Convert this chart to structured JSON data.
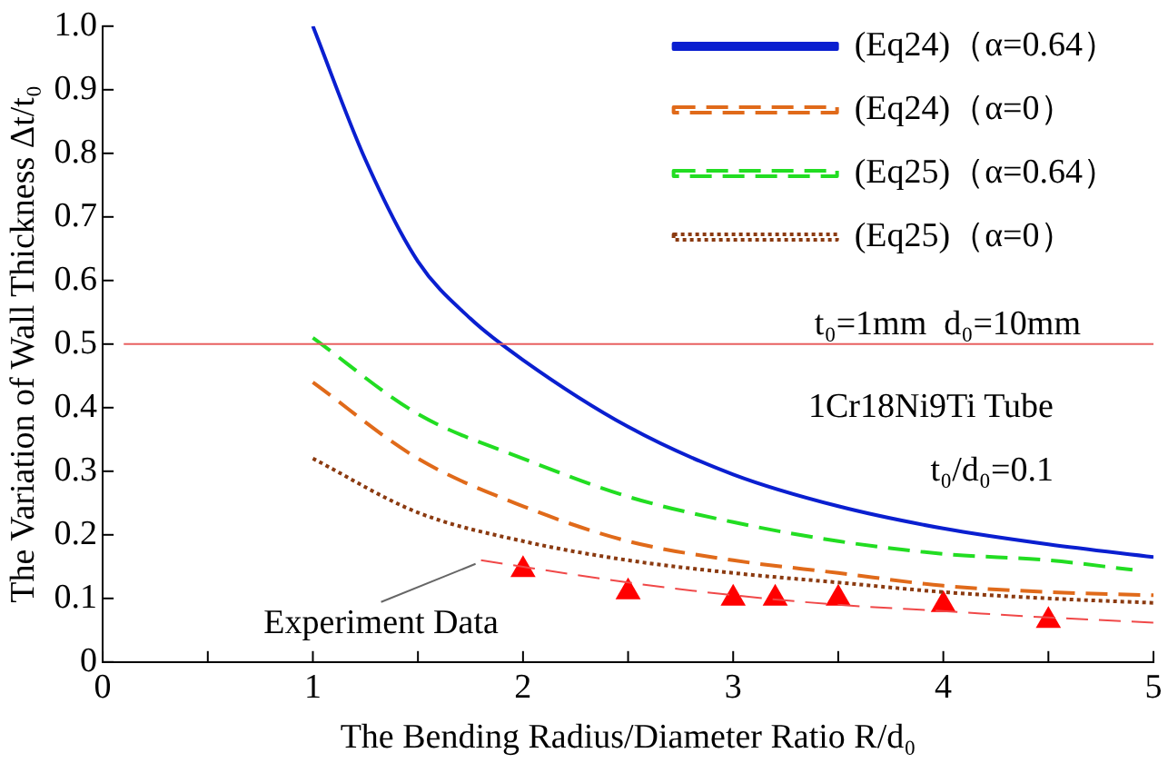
{
  "chart_data": {
    "type": "line",
    "xlabel": "The Bending Radius/Diameter Ratio R/d₀",
    "ylabel": "The Variation of Wall Thickness Δt/t₀",
    "xlim": [
      0,
      5
    ],
    "xticks": [
      0,
      {
        "value": 0.5,
        "label": null
      },
      1,
      {
        "value": 1.5,
        "label": null
      },
      2,
      {
        "value": 2.5,
        "label": null
      },
      3,
      {
        "value": 3.5,
        "label": null
      },
      4,
      {
        "value": 4.5,
        "label": null
      },
      5
    ],
    "ylim": [
      0,
      1
    ],
    "yticks": [
      0,
      0.1,
      0.2,
      0.3,
      0.4,
      0.5,
      0.6,
      0.7,
      0.8,
      0.9,
      {
        "value": 1,
        "label": "1.0"
      }
    ],
    "grid": false,
    "legend": "top right",
    "marker": "none",
    "series": [
      {
        "name": "(Eq24)（α=0.64）",
        "color": "#0a1fd0",
        "line_style": "solid",
        "x": [
          1,
          1.25,
          1.5,
          1.75,
          2,
          2.5,
          3,
          3.5,
          4,
          4.5,
          5
        ],
        "values": [
          1.0,
          0.79,
          0.63,
          0.54,
          0.475,
          0.37,
          0.295,
          0.245,
          0.21,
          0.185,
          0.165
        ]
      },
      {
        "name": "(Eq24)（α=0）",
        "color": "#e06a1a",
        "line_style": "dashed",
        "x": [
          1,
          1.5,
          2,
          2.5,
          3,
          3.5,
          4,
          4.5,
          5
        ],
        "values": [
          0.44,
          0.32,
          0.245,
          0.19,
          0.16,
          0.14,
          0.12,
          0.11,
          0.105
        ]
      },
      {
        "name": "(Eq25)（α=0.64）",
        "color": "#22dd22",
        "line_style": "dashed",
        "x": [
          1,
          1.5,
          2,
          2.5,
          3,
          3.5,
          4,
          4.5,
          4.9
        ],
        "values": [
          0.51,
          0.39,
          0.32,
          0.26,
          0.22,
          0.19,
          0.17,
          0.16,
          0.145
        ]
      },
      {
        "name": "(Eq25)（α=0）",
        "color": "#8b3a10",
        "line_style": "dotted",
        "x": [
          1,
          1.5,
          2,
          2.5,
          3,
          3.5,
          4,
          4.5,
          5
        ],
        "values": [
          0.32,
          0.235,
          0.19,
          0.16,
          0.14,
          0.125,
          0.11,
          0.1,
          0.093
        ]
      },
      {
        "type": "line",
        "color": "#f04848",
        "line_style": "dashed",
        "x": [
          1.8,
          2.5,
          3,
          3.5,
          4,
          4.5,
          5
        ],
        "values": [
          0.16,
          0.125,
          0.105,
          0.09,
          0.08,
          0.07,
          0.062
        ]
      },
      {
        "type": "scatter",
        "color": "#ff0000",
        "marker": "triangle",
        "x": [
          2,
          2.5,
          3,
          3.2,
          3.5,
          4,
          4.5
        ],
        "values": [
          0.145,
          0.11,
          0.1,
          0.1,
          0.1,
          0.09,
          0.065
        ]
      }
    ],
    "ref_lines": [
      {
        "axis": "y",
        "value": 0.5,
        "color": "#e86060"
      }
    ],
    "annotations": [
      "t₀=1mm  d₀=10mm",
      "1Cr18Ni9Ti Tube",
      "t₀/d₀=0.1",
      {
        "text": "Experiment Data",
        "x": 1.8,
        "y": 0.16
      }
    ]
  }
}
